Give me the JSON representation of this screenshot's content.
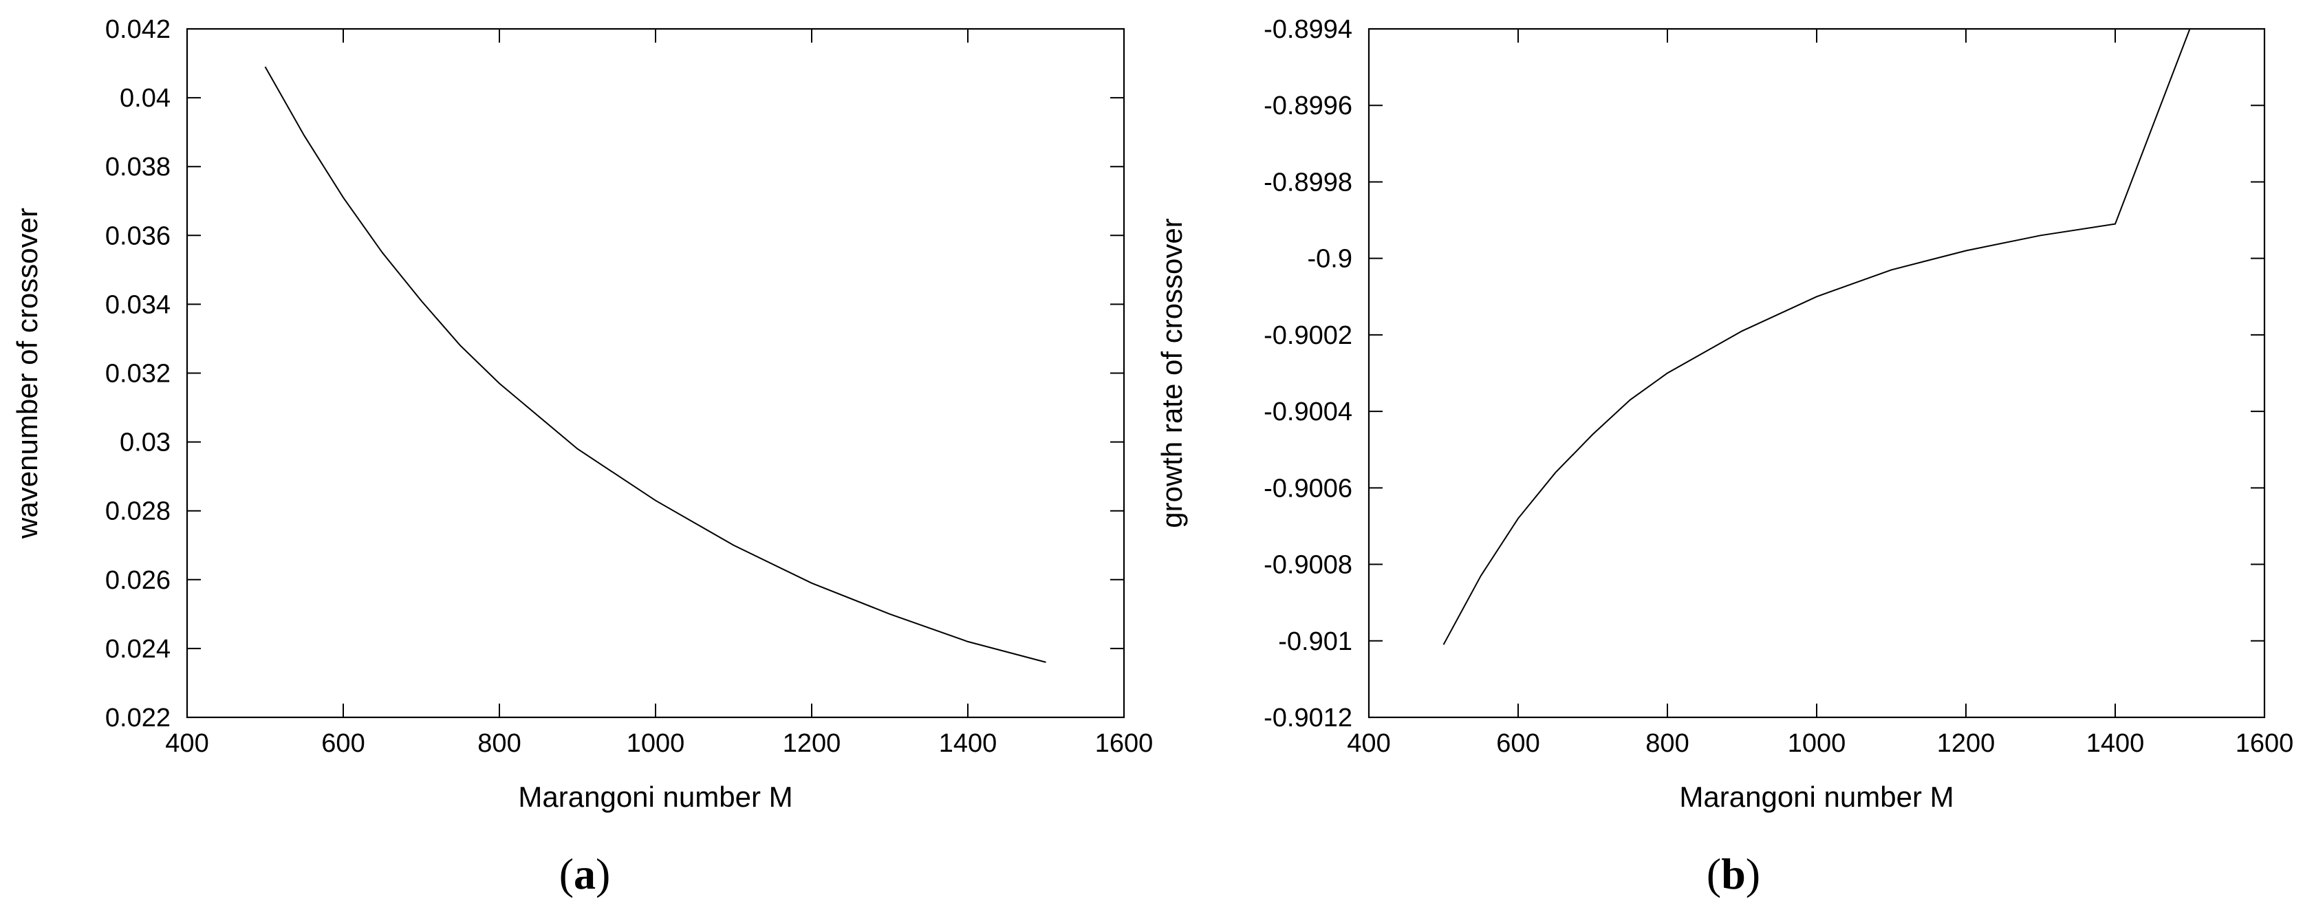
{
  "chart_data": [
    {
      "type": "line",
      "panel_label": "a",
      "xlabel": "Marangoni number M",
      "ylabel": "wavenumber of crossover",
      "xlim": [
        400,
        1600
      ],
      "ylim": [
        0.022,
        0.042
      ],
      "xticks": [
        400,
        600,
        800,
        1000,
        1200,
        1400,
        1600
      ],
      "xtick_labels": [
        "400",
        "600",
        "800",
        "1000",
        "1200",
        "1400",
        "1600"
      ],
      "yticks": [
        0.022,
        0.024,
        0.026,
        0.028,
        0.03,
        0.032,
        0.034,
        0.036,
        0.038,
        0.04,
        0.042
      ],
      "ytick_labels": [
        "0.022",
        "0.024",
        "0.026",
        "0.028",
        "0.03",
        "0.032",
        "0.034",
        "0.036",
        "0.038",
        "0.04",
        "0.042"
      ],
      "grid": false,
      "series": [
        {
          "x": [
            500,
            550,
            600,
            650,
            700,
            750,
            800,
            900,
            1000,
            1100,
            1200,
            1300,
            1400,
            1500
          ],
          "y": [
            0.0409,
            0.0389,
            0.0371,
            0.0355,
            0.0341,
            0.0328,
            0.0317,
            0.0298,
            0.0283,
            0.027,
            0.0259,
            0.025,
            0.0242,
            0.0236
          ]
        }
      ]
    },
    {
      "type": "line",
      "panel_label": "b",
      "xlabel": "Marangoni number M",
      "ylabel": "growth rate of crossover",
      "xlim": [
        400,
        1600
      ],
      "ylim": [
        -0.9012,
        -0.8994
      ],
      "xticks": [
        400,
        600,
        800,
        1000,
        1200,
        1400,
        1600
      ],
      "xtick_labels": [
        "400",
        "600",
        "800",
        "1000",
        "1200",
        "1400",
        "1600"
      ],
      "yticks": [
        -0.9012,
        -0.901,
        -0.9008,
        -0.9006,
        -0.9004,
        -0.9002,
        -0.9,
        -0.8998,
        -0.8996,
        -0.8994
      ],
      "ytick_labels": [
        "-0.9012",
        "-0.901",
        "-0.9008",
        "-0.9006",
        "-0.9004",
        "-0.9002",
        "-0.9",
        "-0.8998",
        "-0.8996",
        "-0.8994"
      ],
      "grid": false,
      "series": [
        {
          "x": [
            500,
            550,
            600,
            650,
            700,
            750,
            800,
            900,
            1000,
            1100,
            1200,
            1300,
            1400,
            1500
          ],
          "y": [
            -0.90101,
            -0.90083,
            -0.90068,
            -0.90056,
            -0.90046,
            -0.90037,
            -0.9003,
            -0.90019,
            -0.9001,
            -0.90003,
            -0.89998,
            -0.89994,
            -0.89991,
            -0.8994
          ]
        }
      ]
    }
  ]
}
